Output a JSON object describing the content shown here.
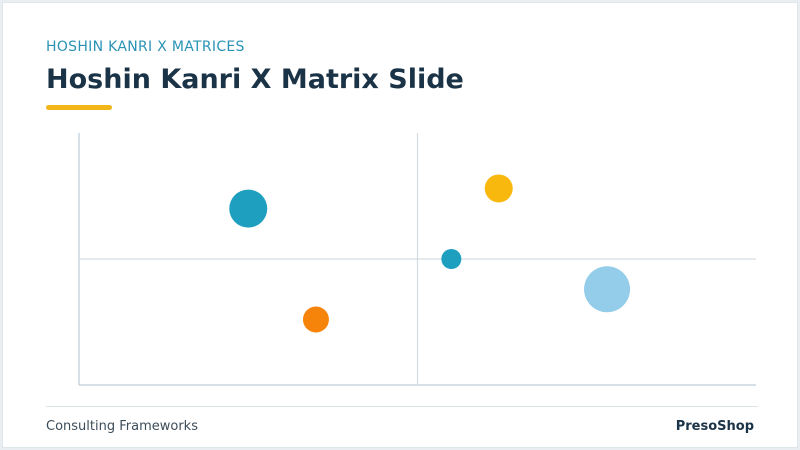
{
  "header": {
    "eyebrow": "HOSHIN KANRI X MATRICES",
    "title": "Hoshin Kanri X Matrix Slide"
  },
  "colors": {
    "teal": "#1f9fc0",
    "amber": "#f8b80e",
    "orange": "#f7840a",
    "light_blue": "#93cdea",
    "accent": "#f2b619"
  },
  "chart_data": {
    "type": "scatter",
    "title": "",
    "xlabel": "",
    "ylabel": "",
    "xlim": [
      0,
      100
    ],
    "ylim": [
      0,
      100
    ],
    "grid": false,
    "quadrant_lines": {
      "x": 50,
      "y": 50
    },
    "points": [
      {
        "x": 25,
        "y": 70,
        "size": 19,
        "color": "#1f9fc0"
      },
      {
        "x": 62,
        "y": 78,
        "size": 14,
        "color": "#f8b80e"
      },
      {
        "x": 55,
        "y": 50,
        "size": 10,
        "color": "#1f9fc0"
      },
      {
        "x": 78,
        "y": 38,
        "size": 23,
        "color": "#93cdea"
      },
      {
        "x": 35,
        "y": 26,
        "size": 13,
        "color": "#f7840a"
      }
    ]
  },
  "footer": {
    "left": "Consulting Frameworks",
    "right": "PresoShop"
  }
}
